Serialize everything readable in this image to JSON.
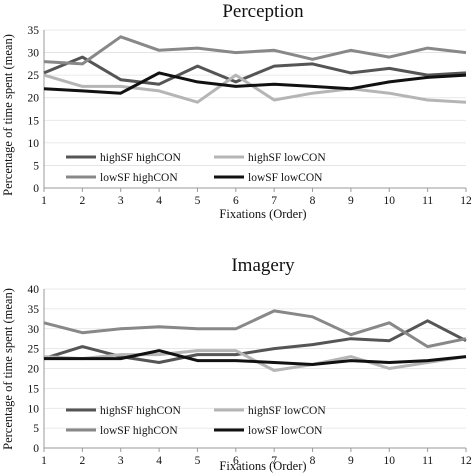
{
  "figure": {
    "background": "#ffffff"
  },
  "chart_data": [
    {
      "type": "line",
      "title": "Perception",
      "xlabel": "Fixations (Order)",
      "ylabel": "Percentage of time spent (mean)",
      "x": [
        1,
        2,
        3,
        4,
        5,
        6,
        7,
        8,
        9,
        10,
        11,
        12
      ],
      "ylim": [
        0,
        35
      ],
      "yticks": [
        0,
        5,
        10,
        15,
        20,
        25,
        30,
        35
      ],
      "grid": "horizontal",
      "legend_position": "center",
      "series": [
        {
          "name": "highSF highCON",
          "color": "#555555",
          "values": [
            25.5,
            29,
            24,
            23,
            27,
            23.5,
            27,
            27.5,
            25.5,
            26.5,
            25,
            25.5
          ]
        },
        {
          "name": "highSF lowCON",
          "color": "#b5b5b5",
          "values": [
            25,
            22.5,
            22.5,
            21.5,
            19,
            25,
            19.5,
            21,
            22,
            21,
            19.5,
            19
          ]
        },
        {
          "name": "lowSF highCON",
          "color": "#888888",
          "values": [
            28,
            27.5,
            33.5,
            30.5,
            31,
            30,
            30.5,
            28.5,
            30.5,
            29,
            31,
            30
          ]
        },
        {
          "name": "lowSF lowCON",
          "color": "#111111",
          "values": [
            22,
            21.5,
            21,
            25.5,
            23.5,
            22.5,
            23,
            22.5,
            22,
            23.5,
            24.5,
            25
          ]
        }
      ]
    },
    {
      "type": "line",
      "title": "Imagery",
      "xlabel": "Fixations (Order)",
      "ylabel": "Percentage of time spent (mean)",
      "x": [
        1,
        2,
        3,
        4,
        5,
        6,
        7,
        8,
        9,
        10,
        11,
        12
      ],
      "ylim": [
        0,
        40
      ],
      "yticks": [
        0,
        5,
        10,
        15,
        20,
        25,
        30,
        35,
        40
      ],
      "grid": "horizontal",
      "legend_position": "center",
      "series": [
        {
          "name": "highSF highCON",
          "color": "#555555",
          "values": [
            22.5,
            25.5,
            23,
            21.5,
            23.5,
            23.5,
            25,
            26,
            27.5,
            27,
            32,
            27
          ]
        },
        {
          "name": "highSF lowCON",
          "color": "#b5b5b5",
          "values": [
            23,
            22.5,
            23.5,
            23.5,
            24.5,
            24.5,
            19.5,
            21,
            23,
            20,
            21.5,
            23
          ]
        },
        {
          "name": "lowSF highCON",
          "color": "#888888",
          "values": [
            31.5,
            29,
            30,
            30.5,
            30,
            30,
            34.5,
            33,
            28.5,
            31.5,
            25.5,
            27.5
          ]
        },
        {
          "name": "lowSF lowCON",
          "color": "#111111",
          "values": [
            22.5,
            22.5,
            22.5,
            24.5,
            22,
            22,
            21.5,
            21,
            22,
            21.5,
            22,
            23
          ]
        }
      ]
    }
  ]
}
